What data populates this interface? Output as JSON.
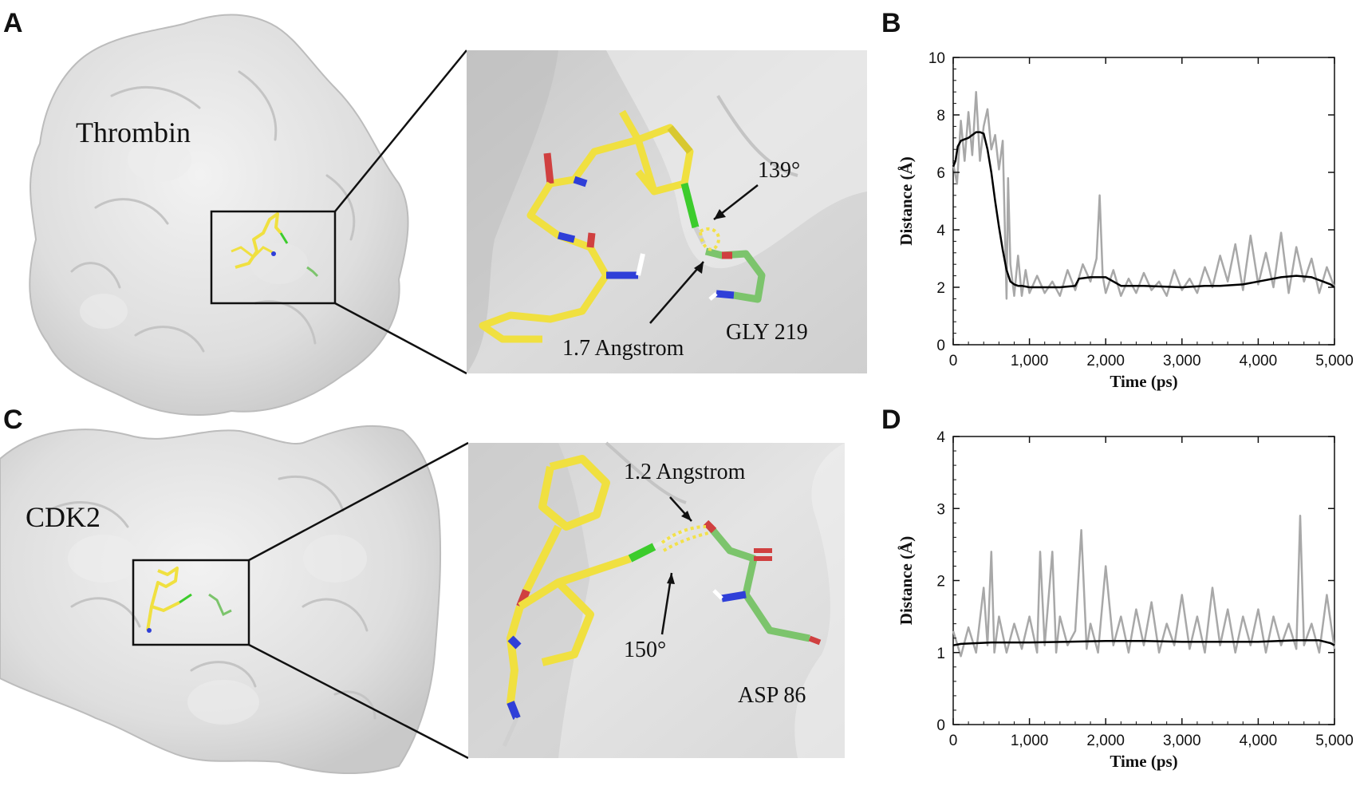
{
  "panels": {
    "A": {
      "letter": "A",
      "protein": "Thrombin",
      "angle_label": "139°",
      "distance_label": "1.7 Angstrom",
      "residue_label": "GLY 219"
    },
    "B": {
      "letter": "B"
    },
    "C": {
      "letter": "C",
      "protein": "CDK2",
      "angle_label": "150°",
      "distance_label": "1.2 Angstrom",
      "residue_label": "ASP 86"
    },
    "D": {
      "letter": "D"
    }
  },
  "colors": {
    "surface": "#dcdcdc",
    "carbon_ligand": "#f0e040",
    "carbon_residue": "#7cc46c",
    "nitrogen": "#2f3fd8",
    "oxygen": "#d04040",
    "halogen": "#3ccc2c",
    "hbond": "#f2e14a",
    "raw_trace": "#a8a8a8",
    "smooth_trace": "#000000"
  },
  "chart_data": [
    {
      "panel": "B",
      "type": "line",
      "xlabel": "Time (ps)",
      "ylabel": "Distance (Å)",
      "xlim": [
        0,
        5000
      ],
      "ylim": [
        0,
        10
      ],
      "xticks": [
        "0",
        "1,000",
        "2,000",
        "3,000",
        "4,000",
        "5,000"
      ],
      "yticks": [
        "0",
        "2",
        "4",
        "6",
        "8",
        "10"
      ],
      "grid": false,
      "legend": "none",
      "series": [
        {
          "style": "raw-grey",
          "x": [
            0,
            50,
            100,
            150,
            200,
            250,
            300,
            350,
            400,
            450,
            500,
            550,
            600,
            650,
            700,
            720,
            750,
            800,
            850,
            900,
            950,
            1000,
            1100,
            1200,
            1300,
            1400,
            1500,
            1600,
            1700,
            1800,
            1880,
            1920,
            1960,
            2000,
            2100,
            2200,
            2300,
            2400,
            2500,
            2600,
            2700,
            2800,
            2900,
            3000,
            3100,
            3200,
            3300,
            3400,
            3500,
            3600,
            3700,
            3800,
            3900,
            4000,
            4100,
            4200,
            4300,
            4400,
            4500,
            4600,
            4700,
            4800,
            4900,
            5000
          ],
          "y": [
            6.3,
            5.6,
            7.8,
            6.4,
            8.1,
            6.6,
            8.8,
            6.4,
            7.6,
            8.2,
            6.8,
            7.3,
            6.1,
            7.1,
            1.6,
            5.8,
            2.8,
            1.7,
            3.1,
            1.7,
            2.6,
            1.8,
            2.4,
            1.8,
            2.2,
            1.7,
            2.6,
            1.9,
            2.8,
            2.2,
            3.0,
            5.2,
            2.4,
            1.8,
            2.6,
            1.7,
            2.3,
            1.8,
            2.5,
            1.9,
            2.2,
            1.7,
            2.6,
            1.9,
            2.3,
            1.8,
            2.7,
            2.0,
            3.1,
            2.2,
            3.5,
            1.9,
            3.8,
            2.1,
            3.2,
            2.0,
            3.9,
            1.8,
            3.4,
            2.2,
            3.0,
            1.8,
            2.7,
            2.0
          ]
        },
        {
          "style": "smoothed-black",
          "x": [
            0,
            30,
            60,
            100,
            150,
            200,
            250,
            300,
            350,
            400,
            450,
            500,
            550,
            600,
            650,
            700,
            750,
            800,
            850,
            900,
            1000,
            1200,
            1400,
            1600,
            1650,
            1800,
            2000,
            2100,
            2200,
            2500,
            3000,
            3300,
            3500,
            3800,
            4000,
            4300,
            4500,
            4700,
            4850,
            4950,
            5000
          ],
          "y": [
            6.2,
            6.4,
            6.9,
            7.1,
            7.15,
            7.2,
            7.3,
            7.4,
            7.4,
            7.35,
            6.8,
            6.0,
            5.0,
            4.1,
            3.3,
            2.6,
            2.2,
            2.1,
            2.05,
            2.05,
            2.0,
            2.0,
            2.0,
            2.05,
            2.3,
            2.35,
            2.35,
            2.2,
            2.05,
            2.05,
            2.0,
            2.05,
            2.05,
            2.1,
            2.2,
            2.35,
            2.4,
            2.35,
            2.2,
            2.1,
            2.0
          ]
        }
      ]
    },
    {
      "panel": "D",
      "type": "line",
      "xlabel": "Time (ps)",
      "ylabel": "Distance (Å)",
      "xlim": [
        0,
        5000
      ],
      "ylim": [
        0,
        4
      ],
      "xticks": [
        "0",
        "1,000",
        "2,000",
        "3,000",
        "4,000",
        "5,000"
      ],
      "yticks": [
        "0",
        "1",
        "2",
        "3",
        "4"
      ],
      "grid": false,
      "legend": "none",
      "series": [
        {
          "style": "raw-grey",
          "x": [
            0,
            100,
            200,
            300,
            400,
            450,
            500,
            540,
            600,
            700,
            800,
            900,
            1000,
            1100,
            1140,
            1200,
            1300,
            1350,
            1400,
            1500,
            1600,
            1680,
            1750,
            1800,
            1900,
            2000,
            2100,
            2200,
            2300,
            2400,
            2500,
            2600,
            2700,
            2800,
            2900,
            3000,
            3100,
            3200,
            3300,
            3400,
            3500,
            3600,
            3700,
            3800,
            3900,
            4000,
            4100,
            4200,
            4300,
            4400,
            4500,
            4550,
            4600,
            4700,
            4800,
            4900,
            5000
          ],
          "y": [
            1.3,
            0.95,
            1.35,
            1.0,
            1.9,
            1.1,
            2.4,
            1.0,
            1.5,
            1.0,
            1.4,
            1.05,
            1.5,
            1.0,
            2.4,
            1.1,
            2.4,
            1.0,
            1.5,
            1.1,
            1.3,
            2.7,
            1.05,
            1.4,
            1.0,
            2.2,
            1.1,
            1.5,
            1.0,
            1.6,
            1.1,
            1.7,
            1.0,
            1.4,
            1.1,
            1.8,
            1.05,
            1.5,
            1.0,
            1.9,
            1.1,
            1.6,
            1.0,
            1.5,
            1.1,
            1.6,
            1.0,
            1.5,
            1.1,
            1.4,
            1.05,
            2.9,
            1.1,
            1.4,
            1.0,
            1.8,
            1.05
          ]
        },
        {
          "style": "smoothed-black",
          "x": [
            0,
            100,
            300,
            500,
            1000,
            1500,
            2000,
            2500,
            3000,
            3500,
            4000,
            4500,
            4800,
            4950,
            5000
          ],
          "y": [
            1.1,
            1.12,
            1.13,
            1.14,
            1.14,
            1.15,
            1.16,
            1.16,
            1.15,
            1.15,
            1.15,
            1.17,
            1.17,
            1.13,
            1.1
          ]
        }
      ]
    }
  ]
}
